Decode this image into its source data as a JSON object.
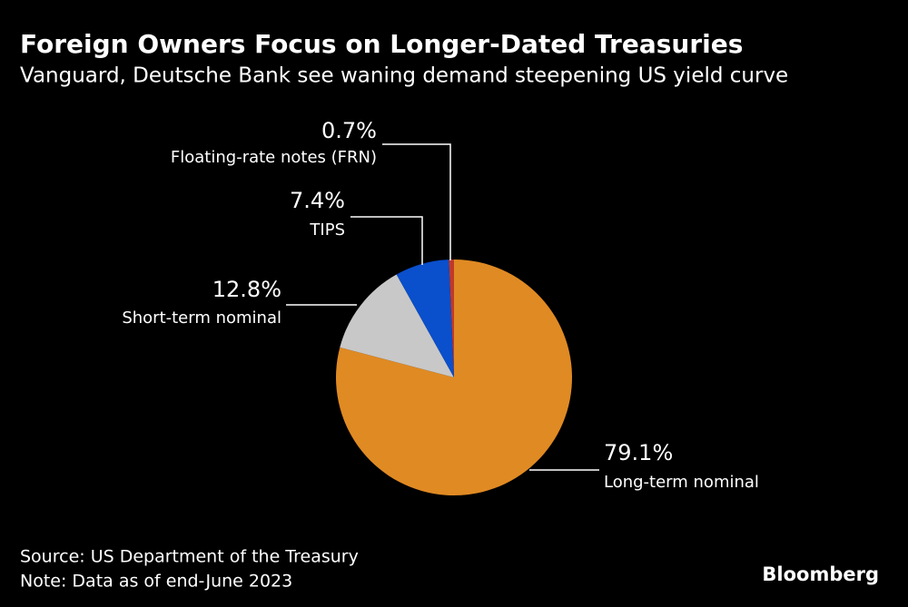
{
  "chart_data": {
    "type": "pie",
    "title": "Foreign Owners Focus on Longer-Dated Treasuries",
    "subtitle": "Vanguard, Deutsche Bank see waning demand steepening US yield curve",
    "categories": [
      "Long-term nominal",
      "Short-term nominal",
      "TIPS",
      "Floating-rate notes (FRN)"
    ],
    "values": [
      79.1,
      12.8,
      7.4,
      0.7
    ],
    "value_labels": [
      "79.1%",
      "12.8%",
      "7.4%",
      "0.7%"
    ],
    "colors": [
      "#e08a23",
      "#c8c8c8",
      "#0a4fcc",
      "#c0392b"
    ],
    "source": "Source: US Department of the Treasury",
    "note": "Note: Data as of end-June 2023",
    "credit": "Bloomberg"
  }
}
